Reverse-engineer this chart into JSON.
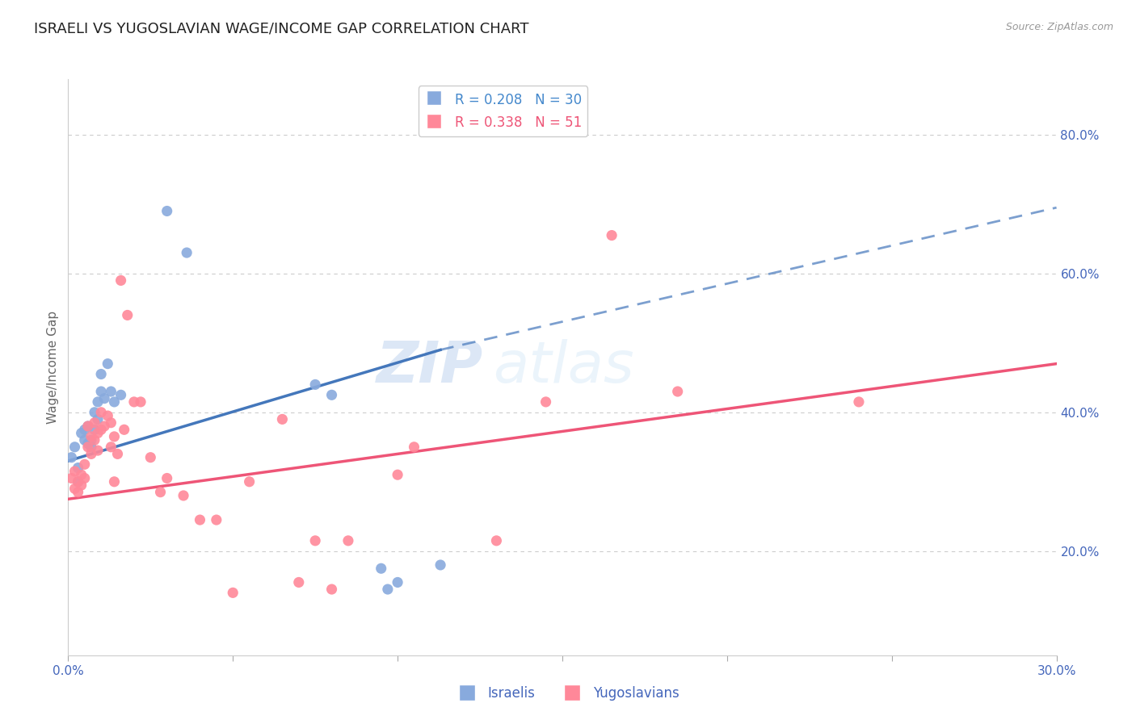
{
  "title": "ISRAELI VS YUGOSLAVIAN WAGE/INCOME GAP CORRELATION CHART",
  "source": "Source: ZipAtlas.com",
  "ylabel": "Wage/Income Gap",
  "xlim": [
    0.0,
    0.3
  ],
  "ylim": [
    0.05,
    0.88
  ],
  "right_yticks": [
    0.2,
    0.4,
    0.6,
    0.8
  ],
  "right_ytick_labels": [
    "20.0%",
    "40.0%",
    "60.0%",
    "80.0%"
  ],
  "watermark_zip": "ZIP",
  "watermark_atlas": "atlas",
  "legend_entries": [
    {
      "label": "R = 0.208   N = 30",
      "color": "#4488cc"
    },
    {
      "label": "R = 0.338   N = 51",
      "color": "#ee5577"
    }
  ],
  "israeli_dots": [
    [
      0.001,
      0.335
    ],
    [
      0.002,
      0.35
    ],
    [
      0.003,
      0.32
    ],
    [
      0.003,
      0.3
    ],
    [
      0.004,
      0.37
    ],
    [
      0.005,
      0.375
    ],
    [
      0.005,
      0.36
    ],
    [
      0.006,
      0.38
    ],
    [
      0.006,
      0.355
    ],
    [
      0.007,
      0.36
    ],
    [
      0.007,
      0.35
    ],
    [
      0.008,
      0.4
    ],
    [
      0.008,
      0.375
    ],
    [
      0.009,
      0.415
    ],
    [
      0.009,
      0.39
    ],
    [
      0.01,
      0.455
    ],
    [
      0.01,
      0.43
    ],
    [
      0.011,
      0.42
    ],
    [
      0.012,
      0.47
    ],
    [
      0.013,
      0.43
    ],
    [
      0.014,
      0.415
    ],
    [
      0.016,
      0.425
    ],
    [
      0.03,
      0.69
    ],
    [
      0.036,
      0.63
    ],
    [
      0.075,
      0.44
    ],
    [
      0.08,
      0.425
    ],
    [
      0.095,
      0.175
    ],
    [
      0.097,
      0.145
    ],
    [
      0.1,
      0.155
    ],
    [
      0.113,
      0.18
    ]
  ],
  "yugoslav_dots": [
    [
      0.001,
      0.305
    ],
    [
      0.002,
      0.315
    ],
    [
      0.002,
      0.29
    ],
    [
      0.003,
      0.3
    ],
    [
      0.003,
      0.285
    ],
    [
      0.004,
      0.31
    ],
    [
      0.004,
      0.295
    ],
    [
      0.005,
      0.325
    ],
    [
      0.005,
      0.305
    ],
    [
      0.006,
      0.38
    ],
    [
      0.006,
      0.35
    ],
    [
      0.007,
      0.365
    ],
    [
      0.007,
      0.34
    ],
    [
      0.008,
      0.385
    ],
    [
      0.008,
      0.36
    ],
    [
      0.009,
      0.37
    ],
    [
      0.009,
      0.345
    ],
    [
      0.01,
      0.4
    ],
    [
      0.01,
      0.375
    ],
    [
      0.011,
      0.38
    ],
    [
      0.012,
      0.395
    ],
    [
      0.013,
      0.385
    ],
    [
      0.013,
      0.35
    ],
    [
      0.014,
      0.365
    ],
    [
      0.014,
      0.3
    ],
    [
      0.015,
      0.34
    ],
    [
      0.016,
      0.59
    ],
    [
      0.017,
      0.375
    ],
    [
      0.018,
      0.54
    ],
    [
      0.02,
      0.415
    ],
    [
      0.022,
      0.415
    ],
    [
      0.025,
      0.335
    ],
    [
      0.028,
      0.285
    ],
    [
      0.03,
      0.305
    ],
    [
      0.035,
      0.28
    ],
    [
      0.04,
      0.245
    ],
    [
      0.045,
      0.245
    ],
    [
      0.05,
      0.14
    ],
    [
      0.055,
      0.3
    ],
    [
      0.065,
      0.39
    ],
    [
      0.07,
      0.155
    ],
    [
      0.075,
      0.215
    ],
    [
      0.08,
      0.145
    ],
    [
      0.085,
      0.215
    ],
    [
      0.1,
      0.31
    ],
    [
      0.105,
      0.35
    ],
    [
      0.13,
      0.215
    ],
    [
      0.145,
      0.415
    ],
    [
      0.165,
      0.655
    ],
    [
      0.185,
      0.43
    ],
    [
      0.24,
      0.415
    ]
  ],
  "israeli_line_solid": {
    "x0": 0.0,
    "y0": 0.33,
    "x1": 0.113,
    "y1": 0.49
  },
  "israeli_line_dash": {
    "x0": 0.113,
    "y0": 0.49,
    "x1": 0.3,
    "y1": 0.695
  },
  "yugoslav_line": {
    "x0": 0.0,
    "y0": 0.275,
    "x1": 0.3,
    "y1": 0.47
  },
  "dot_color_israeli": "#88aadd",
  "dot_color_yugoslav": "#ff8899",
  "line_color_israeli": "#4477bb",
  "line_color_yugoslav": "#ee5577",
  "dot_size": 90,
  "grid_color": "#cccccc",
  "bg_color": "#ffffff",
  "title_fontsize": 13,
  "tick_color": "#4466bb"
}
